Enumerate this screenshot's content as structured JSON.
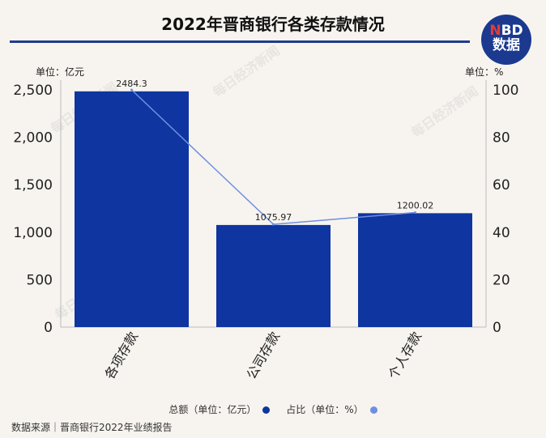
{
  "title": "2022年晋商银行各类存款情况",
  "logo": {
    "line1_accent": "N",
    "line1_rest": "BD",
    "line2": "数据"
  },
  "unit_left": "单位：亿元",
  "unit_right": "单位：%",
  "watermark": "每日经济新闻",
  "legend": {
    "total_label": "总额（单位：亿元）",
    "share_label": "占比（单位：%）"
  },
  "source": "数据来源｜晋商银行2022年业绩报告",
  "colors": {
    "bar": "#0e35a0",
    "line": "#6f8fe0",
    "title_rule": "#1f3d8a"
  },
  "chart_data": {
    "type": "bar",
    "categories": [
      "各项存款",
      "公司存款",
      "个人存款"
    ],
    "series": [
      {
        "name": "总额（单位：亿元）",
        "type": "bar",
        "axis": "left",
        "values": [
          2484.3,
          1075.97,
          1200.02
        ],
        "data_labels": [
          "2484.3",
          "1075.97",
          "1200.02"
        ]
      },
      {
        "name": "占比（单位：%）",
        "type": "line",
        "axis": "right",
        "values": [
          100,
          43.31,
          48.3
        ]
      }
    ],
    "y_left": {
      "range": [
        0,
        2500
      ],
      "ticks": [
        "0",
        "500",
        "1,000",
        "1,500",
        "2,000",
        "2,500"
      ]
    },
    "y_right": {
      "range": [
        0,
        100
      ],
      "ticks": [
        "0",
        "20",
        "40",
        "60",
        "80",
        "100"
      ]
    },
    "grid": false,
    "legend_position": "bottom"
  }
}
